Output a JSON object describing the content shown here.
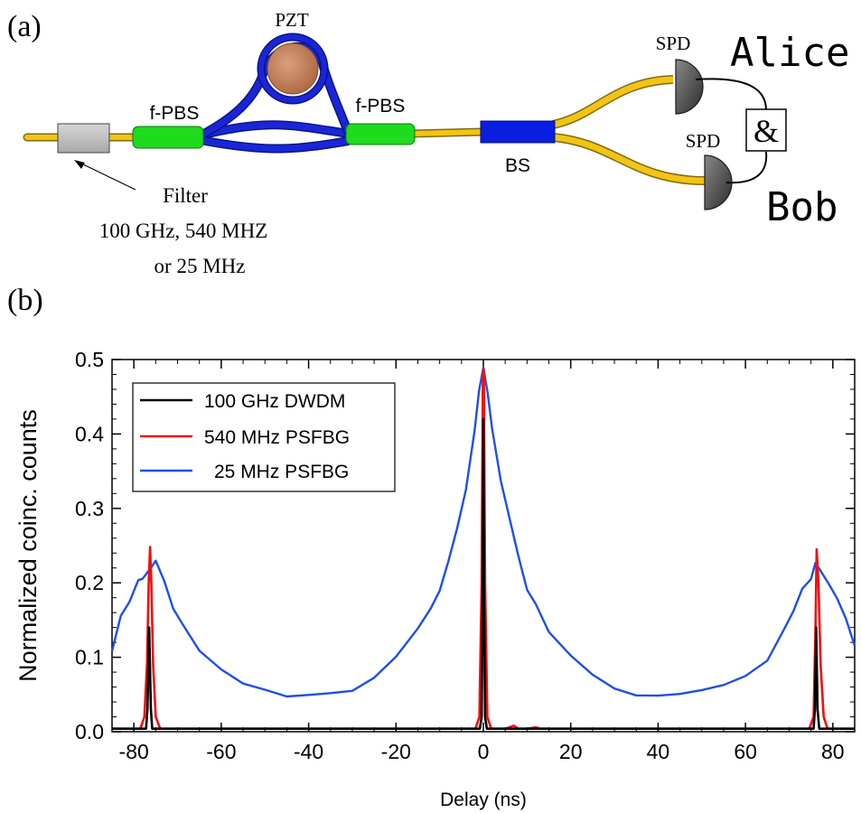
{
  "panel_a": {
    "label": "(a)",
    "pzt_label": "PZT",
    "fpbs_left_label": "f-PBS",
    "fpbs_right_label": "f-PBS",
    "bs_label": "BS",
    "spd_top_label": "SPD",
    "spd_bottom_label": "SPD",
    "alice_label": "Alice",
    "bob_label": "Bob",
    "and_label": "&",
    "filter_lines": [
      "Filter",
      "100 GHz, 540 MHZ",
      "or 25 MHz"
    ]
  },
  "panel_b": {
    "label": "(b)"
  },
  "colors": {
    "fiber": "#f2c413",
    "loop": "#1a26d6",
    "coupler": "#1edb1e",
    "bs": "#0a1ee0",
    "pzt": "#c9855e",
    "detector": "#555555",
    "series_100ghz": "#000000",
    "series_540mhz": "#ee1111",
    "series_25mhz": "#1f4fe8"
  },
  "chart_data": {
    "type": "line",
    "xlabel": "Delay (ns)",
    "ylabel": "Normalized coinc. counts",
    "xlim": [
      -85,
      85
    ],
    "ylim": [
      0,
      0.5
    ],
    "xticks": [
      -80,
      -60,
      -40,
      -20,
      0,
      20,
      40,
      60,
      80
    ],
    "xtick_labels": [
      "-80",
      "-60",
      "-40",
      "-20",
      "0",
      "20",
      "40",
      "60",
      "80"
    ],
    "yticks": [
      0,
      0.1,
      0.2,
      0.3,
      0.4,
      0.5
    ],
    "ytick_labels": [
      "0.0",
      "0.1",
      "0.2",
      "0.3",
      "0.4",
      "0.5"
    ],
    "legend_position": "top-left",
    "series": [
      {
        "name": "100 GHz DWDM",
        "color": "#000000",
        "x": [
          -85,
          -77.2,
          -76.9,
          -76.5,
          -76.1,
          -75.8,
          -75.5,
          -0.8,
          -0.4,
          -0.15,
          0,
          0.15,
          0.4,
          0.8,
          75.6,
          75.9,
          76.2,
          76.5,
          76.9,
          77.2,
          85
        ],
        "y": [
          0.004,
          0.004,
          0.03,
          0.14,
          0.03,
          0.004,
          0.004,
          0.004,
          0.02,
          0.2,
          0.42,
          0.2,
          0.02,
          0.004,
          0.004,
          0.03,
          0.14,
          0.03,
          0.004,
          0.004,
          0.004
        ]
      },
      {
        "name": "540 MHz PSFBG",
        "color": "#ee1111",
        "x": [
          -85,
          -78.5,
          -77.6,
          -77.0,
          -76.6,
          -76.3,
          -76.0,
          -75.6,
          -75.0,
          -74.0,
          -1.8,
          -0.9,
          -0.4,
          -0.1,
          0.1,
          0.4,
          0.9,
          1.8,
          5,
          7,
          8,
          10,
          12,
          13,
          74.6,
          75.6,
          76.0,
          76.3,
          76.7,
          77.2,
          77.9,
          78.8,
          85
        ],
        "y": [
          0.004,
          0.004,
          0.02,
          0.09,
          0.2,
          0.248,
          0.2,
          0.09,
          0.02,
          0.004,
          0.004,
          0.02,
          0.2,
          0.48,
          0.487,
          0.2,
          0.02,
          0.004,
          0.004,
          0.008,
          0.004,
          0.004,
          0.006,
          0.004,
          0.004,
          0.02,
          0.13,
          0.245,
          0.2,
          0.09,
          0.02,
          0.004,
          0.004
        ]
      },
      {
        "name": "25 MHz PSFBG",
        "color": "#1f4fe8",
        "x": [
          -85,
          -83,
          -81,
          -79,
          -78,
          -76,
          -75,
          -73,
          -71,
          -69,
          -65,
          -60,
          -55,
          -50,
          -45,
          -40,
          -35,
          -30,
          -25,
          -20,
          -15,
          -12,
          -10,
          -8,
          -6,
          -4,
          -2,
          -1,
          0,
          1,
          2,
          4,
          6,
          8,
          10,
          12,
          15,
          20,
          25,
          30,
          35,
          40,
          45,
          50,
          55,
          60,
          65,
          69,
          71,
          73,
          75,
          76,
          77,
          79,
          81,
          83,
          85
        ],
        "y": [
          0.112,
          0.15,
          0.18,
          0.2,
          0.205,
          0.22,
          0.228,
          0.2,
          0.17,
          0.14,
          0.11,
          0.085,
          0.065,
          0.055,
          0.045,
          0.048,
          0.053,
          0.058,
          0.075,
          0.1,
          0.135,
          0.165,
          0.19,
          0.23,
          0.27,
          0.33,
          0.4,
          0.455,
          0.493,
          0.46,
          0.405,
          0.34,
          0.285,
          0.235,
          0.195,
          0.165,
          0.13,
          0.098,
          0.076,
          0.062,
          0.054,
          0.05,
          0.047,
          0.05,
          0.06,
          0.078,
          0.102,
          0.138,
          0.165,
          0.19,
          0.205,
          0.22,
          0.215,
          0.2,
          0.18,
          0.15,
          0.116
        ]
      }
    ]
  }
}
